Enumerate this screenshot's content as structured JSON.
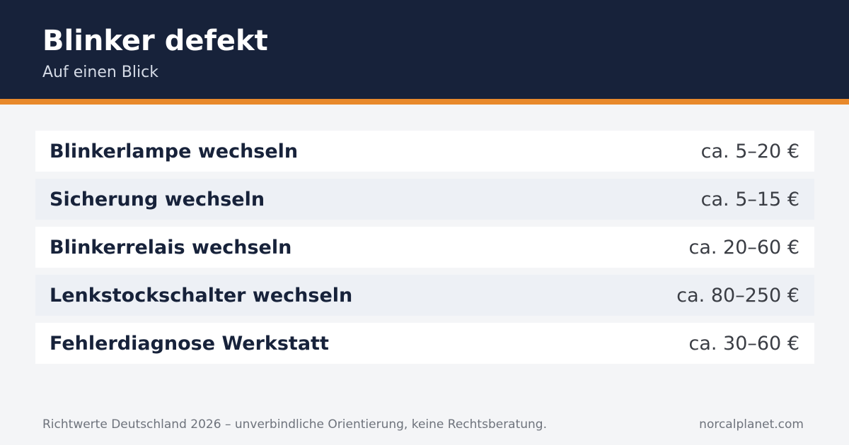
{
  "header": {
    "title": "Blinker defekt",
    "subtitle": "Auf einen Blick",
    "background_color": "#17223a",
    "accent_color": "#e8892b"
  },
  "items": [
    {
      "label": "Blinkerlampe wechseln",
      "price": "ca. 5–20 €"
    },
    {
      "label": "Sicherung wechseln",
      "price": "ca. 5–15 €"
    },
    {
      "label": "Blinkerrelais wechseln",
      "price": "ca. 20–60 €"
    },
    {
      "label": "Lenkstockschalter wechseln",
      "price": "ca. 80–250 €"
    },
    {
      "label": "Fehlerdiagnose Werkstatt",
      "price": "ca. 30–60 €"
    }
  ],
  "footer": {
    "note": "Richtwerte Deutschland 2026 – unverbindliche Orientierung, keine Rechtsberatung.",
    "site": "norcalplanet.com"
  }
}
